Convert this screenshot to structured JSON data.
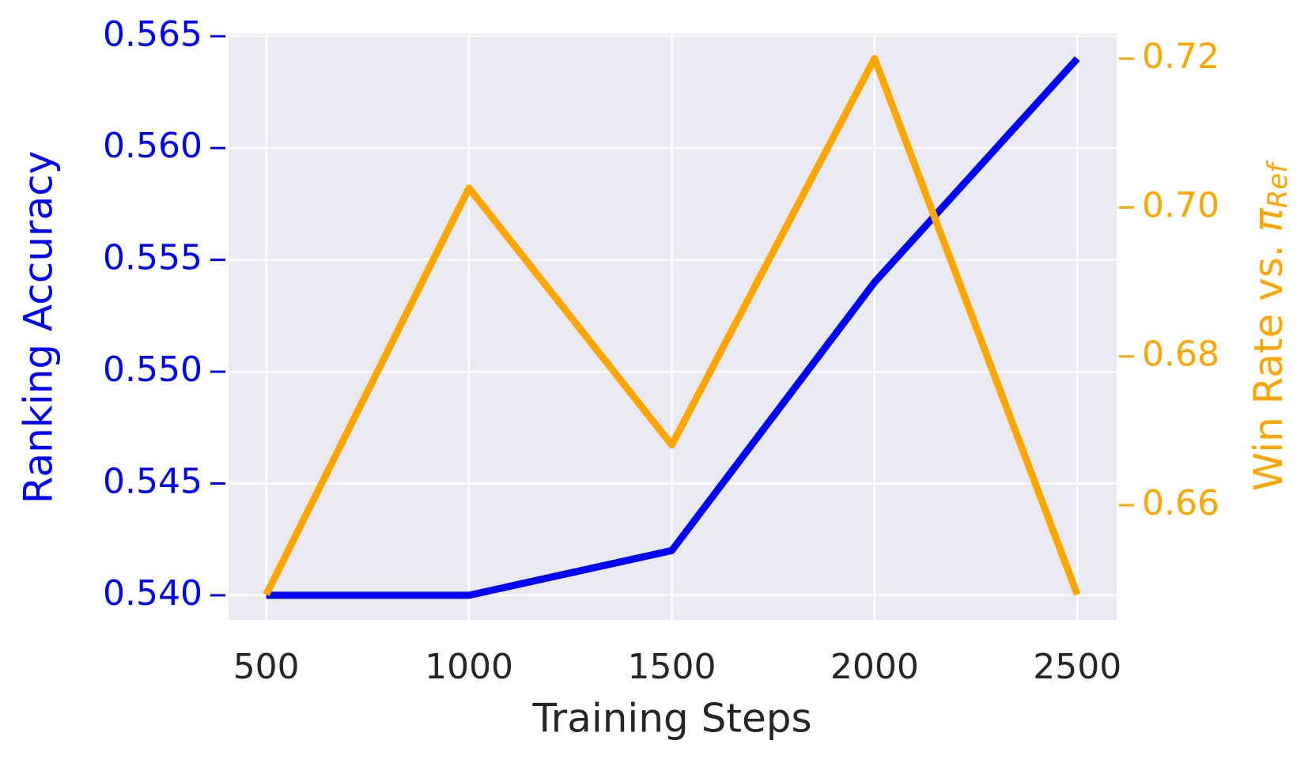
{
  "chart_data": {
    "type": "line",
    "xlabel": "Training Steps",
    "ylabel": "Ranking Accuracy",
    "y2label": {
      "text": "Win Rate vs.",
      "symbol": "π",
      "subscript": "Ref"
    },
    "x": [
      500,
      1000,
      1500,
      2000,
      2500
    ],
    "xlim": [
      407,
      2597
    ],
    "xticks": [
      500,
      1000,
      1500,
      2000,
      2500
    ],
    "ylim": [
      0.5389,
      0.5651
    ],
    "yticks": [
      {
        "value": 0.54,
        "label": "0.540"
      },
      {
        "value": 0.545,
        "label": "0.545"
      },
      {
        "value": 0.55,
        "label": "0.550"
      },
      {
        "value": 0.555,
        "label": "0.555"
      },
      {
        "value": 0.56,
        "label": "0.560"
      },
      {
        "value": 0.565,
        "label": "0.565"
      }
    ],
    "y2lim": [
      0.6446,
      0.7233
    ],
    "y2ticks": [
      {
        "value": 0.66,
        "label": "0.66"
      },
      {
        "value": 0.68,
        "label": "0.68"
      },
      {
        "value": 0.7,
        "label": "0.70"
      },
      {
        "value": 0.72,
        "label": "0.72"
      }
    ],
    "grid": true,
    "series": [
      {
        "color": "#0000ff",
        "axis": "y",
        "values": [
          0.54,
          0.54,
          0.542,
          0.554,
          0.564
        ]
      },
      {
        "color": "#ffa500",
        "axis": "y2",
        "values": [
          0.648,
          0.7026,
          0.6681,
          0.72,
          0.648
        ]
      }
    ]
  }
}
